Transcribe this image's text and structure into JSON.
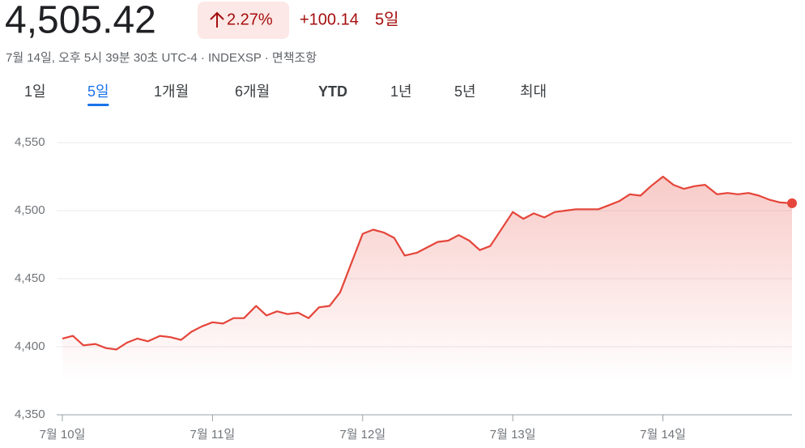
{
  "header": {
    "price": "4,505.42",
    "change_percent": "2.27%",
    "change": "+100.14",
    "period": "5일",
    "subtitle": "7월 14일, 오후 5시 39분 30초 UTC-4 · INDEXSP · 면책조항"
  },
  "tabs": {
    "items": [
      "1일",
      "5일",
      "1개월",
      "6개월",
      "YTD",
      "1년",
      "5년",
      "최대"
    ],
    "selected": 1
  },
  "chart_data": {
    "type": "line",
    "color": "#e5453a",
    "grid": true,
    "x": [
      0,
      0.07,
      0.14,
      0.22,
      0.29,
      0.36,
      0.43,
      0.5,
      0.57,
      0.65,
      0.72,
      0.79,
      0.86,
      0.93,
      1,
      1.07,
      1.14,
      1.21,
      1.29,
      1.36,
      1.43,
      1.5,
      1.57,
      1.64,
      1.71,
      1.78,
      1.85,
      2,
      2.07,
      2.14,
      2.21,
      2.28,
      2.36,
      2.43,
      2.5,
      2.57,
      2.64,
      2.71,
      2.78,
      2.85,
      3,
      3.07,
      3.14,
      3.21,
      3.28,
      3.35,
      3.42,
      3.49,
      3.57,
      3.64,
      3.71,
      3.78,
      3.85,
      3.92,
      4,
      4.07,
      4.14,
      4.21,
      4.28,
      4.36,
      4.43,
      4.5,
      4.57,
      4.64,
      4.71,
      4.78,
      4.86
    ],
    "values": [
      4406,
      4408,
      4401,
      4402,
      4399,
      4398,
      4403,
      4406,
      4404,
      4408,
      4407,
      4405,
      4411,
      4415,
      4418,
      4417,
      4421,
      4421,
      4430,
      4423,
      4426,
      4424,
      4425,
      4421,
      4429,
      4430,
      4440,
      4483,
      4486,
      4484,
      4480,
      4467,
      4469,
      4473,
      4477,
      4478,
      4482,
      4478,
      4471,
      4474,
      4499,
      4494,
      4498,
      4495,
      4499,
      4500,
      4501,
      4501,
      4501,
      4504,
      4507,
      4512,
      4511,
      4518,
      4525,
      4519,
      4516,
      4518,
      4519,
      4512,
      4513,
      4512,
      4513,
      4511,
      4508,
      4506,
      4505.42
    ],
    "xlim": [
      0,
      4.86
    ],
    "xticks": [
      {
        "value": 0,
        "label": "7월 10일"
      },
      {
        "value": 1,
        "label": "7월 11일"
      },
      {
        "value": 2,
        "label": "7월 12일"
      },
      {
        "value": 3,
        "label": "7월 13일"
      },
      {
        "value": 4,
        "label": "7월 14일"
      }
    ],
    "ylim": [
      4350,
      4550
    ],
    "yticks": [
      {
        "value": 4350,
        "label": "4,350"
      },
      {
        "value": 4400,
        "label": "4,400"
      },
      {
        "value": 4450,
        "label": "4,450"
      },
      {
        "value": 4500,
        "label": "4,500"
      },
      {
        "value": 4550,
        "label": "4,550"
      }
    ]
  }
}
